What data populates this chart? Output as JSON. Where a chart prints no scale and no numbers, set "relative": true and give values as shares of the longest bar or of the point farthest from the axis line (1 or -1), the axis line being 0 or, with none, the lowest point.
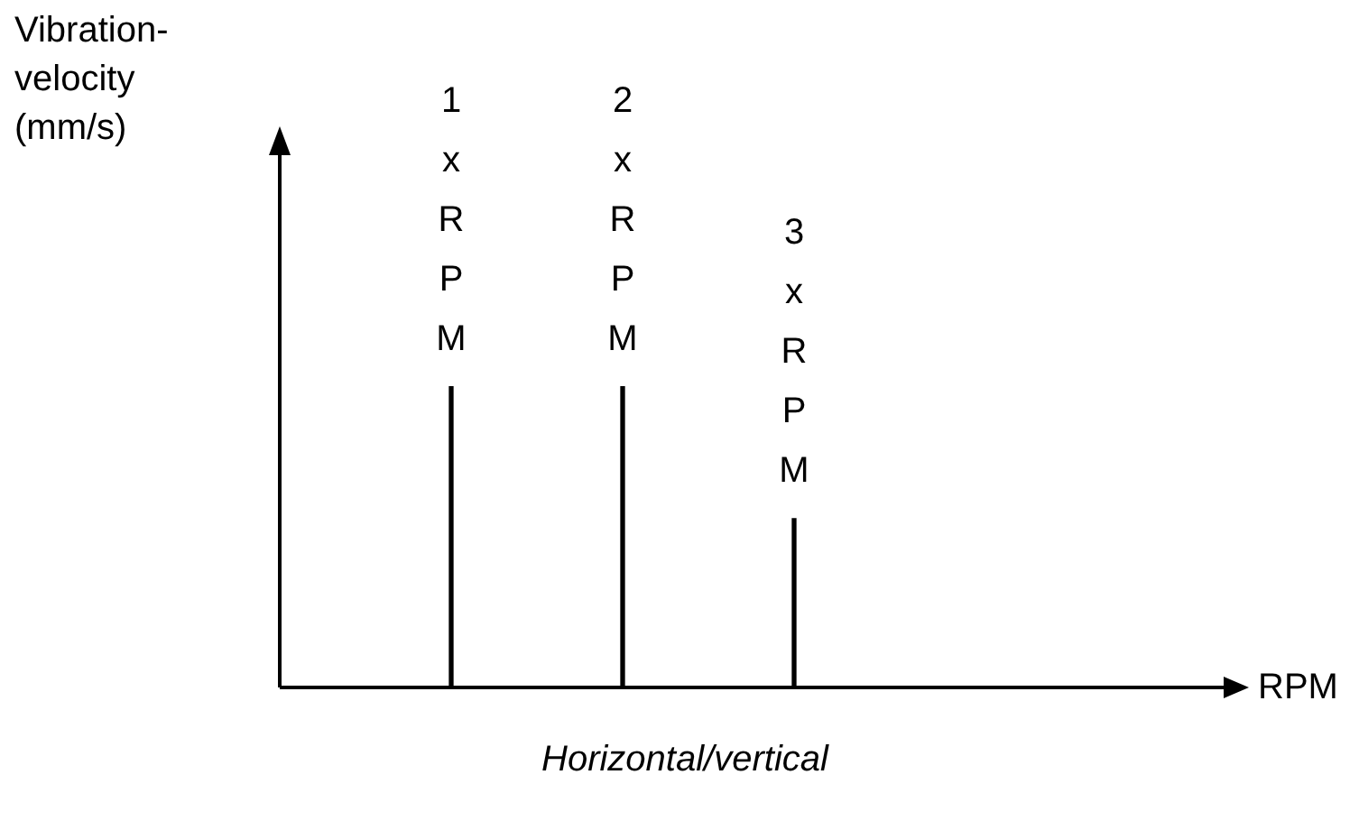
{
  "chart_data": {
    "type": "bar",
    "relative": true,
    "categories": [
      null,
      "1xRPM",
      "2xRPM",
      "3xRPM",
      null,
      null
    ],
    "values": [
      null,
      1,
      1,
      0.56,
      null,
      null
    ],
    "color": "#000000",
    "ylabel": "Vibration-velocity (mm/s)",
    "xlabel": "RPM",
    "annotations": [
      "Horizontal/vertical"
    ],
    "legend": false
  }
}
